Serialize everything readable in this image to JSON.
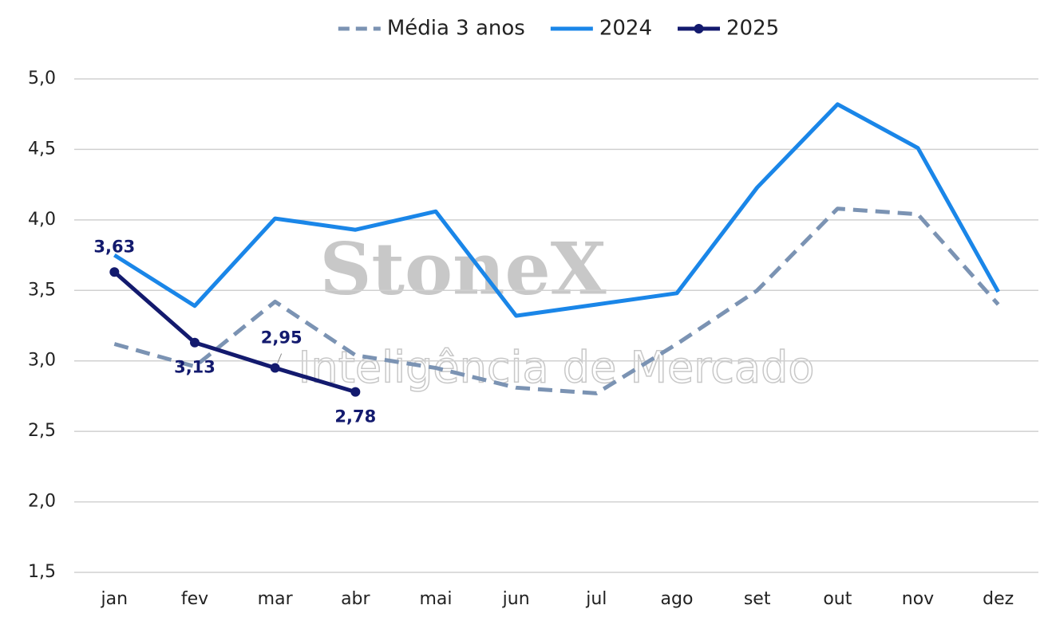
{
  "chart_data": {
    "type": "line",
    "categories": [
      "jan",
      "fev",
      "mar",
      "abr",
      "mai",
      "jun",
      "jul",
      "ago",
      "set",
      "out",
      "nov",
      "dez"
    ],
    "series": [
      {
        "name": "Média 3 anos",
        "color": "#7b93b3",
        "dashed": true,
        "values": [
          3.12,
          2.96,
          3.42,
          3.04,
          2.95,
          2.81,
          2.77,
          3.12,
          3.5,
          4.08,
          4.04,
          3.4
        ]
      },
      {
        "name": "2024",
        "color": "#1a86e8",
        "values": [
          3.75,
          3.39,
          4.01,
          3.93,
          4.06,
          3.32,
          3.4,
          3.48,
          4.23,
          4.82,
          4.51,
          3.49
        ]
      },
      {
        "name": "2025",
        "color": "#131a6e",
        "markers": true,
        "values": [
          3.63,
          3.13,
          2.95,
          2.78,
          null,
          null,
          null,
          null,
          null,
          null,
          null,
          null
        ],
        "value_labels": [
          "3,63",
          "3,13",
          "2,95",
          "2,78",
          null,
          null,
          null,
          null,
          null,
          null,
          null,
          null
        ]
      }
    ],
    "ylim": [
      1.5,
      5.0
    ],
    "yticks": [
      {
        "value": 1.5,
        "label": "1,5"
      },
      {
        "value": 2.0,
        "label": "2,0"
      },
      {
        "value": 2.5,
        "label": "2,5"
      },
      {
        "value": 3.0,
        "label": "3,0"
      },
      {
        "value": 3.5,
        "label": "3,5"
      },
      {
        "value": 4.0,
        "label": "4,0"
      },
      {
        "value": 4.5,
        "label": "4,5"
      },
      {
        "value": 5.0,
        "label": "5,0"
      }
    ],
    "grid": true,
    "legend": "top",
    "watermark": [
      "StoneX",
      "Inteligência de Mercado"
    ]
  }
}
